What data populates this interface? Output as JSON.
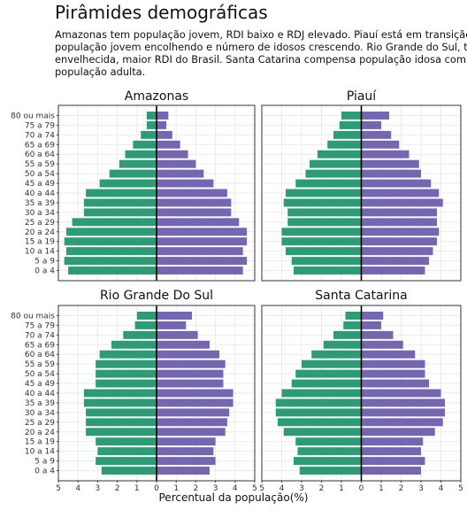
{
  "title": "Pirâmides demográficas",
  "subtitle_lines": [
    "Amazonas tem população jovem, RDI baixo e RDJ elevado. Piauí está em transição,",
    "população jovem encolhendo e número de idosos crescendo. Rio Grande do Sul, t",
    "envelhecida, maior RDI do Brasil. Santa Catarina compensa população idosa com",
    "população adulta."
  ],
  "chart_data": {
    "type": "bar",
    "xlabel": "Percentual da população(%)",
    "xlim": [
      -5,
      5
    ],
    "x_ticks": [
      -5,
      -4,
      -3,
      -2,
      -1,
      0,
      1,
      2,
      3,
      4,
      5
    ],
    "x_tick_labels": [
      "5",
      "4",
      "3",
      "2",
      "1",
      "0",
      "1",
      "2",
      "3",
      "4",
      "5"
    ],
    "grid": true,
    "colors": {
      "left": "#2e9b77",
      "right": "#7466b0"
    },
    "categories": [
      "0 a 4",
      "5 a 9",
      "10 a 14",
      "15 a 19",
      "20 a 24",
      "25 a 29",
      "30 a 34",
      "35 a 39",
      "40 a 44",
      "45 a 49",
      "50 a 54",
      "55 a 59",
      "60 a 64",
      "65 a 69",
      "70 a 74",
      "75 a 79",
      "80 ou mais"
    ],
    "panels": [
      {
        "title": "Amazonas",
        "left": [
          4.5,
          4.7,
          4.6,
          4.7,
          4.6,
          4.3,
          3.7,
          3.7,
          3.6,
          2.9,
          2.4,
          1.9,
          1.6,
          1.2,
          0.8,
          0.5,
          0.5
        ],
        "right": [
          4.4,
          4.6,
          4.4,
          4.6,
          4.6,
          4.2,
          3.8,
          3.8,
          3.6,
          2.9,
          2.4,
          2.0,
          1.6,
          1.2,
          0.8,
          0.5,
          0.6
        ]
      },
      {
        "title": "Piauí",
        "left": [
          3.4,
          3.5,
          3.8,
          4.0,
          4.0,
          3.7,
          3.7,
          3.9,
          3.8,
          3.3,
          2.8,
          2.6,
          2.2,
          1.7,
          1.4,
          1.1,
          1.0
        ],
        "right": [
          3.2,
          3.4,
          3.6,
          3.8,
          3.9,
          3.8,
          3.8,
          4.1,
          3.9,
          3.5,
          3.0,
          2.9,
          2.4,
          1.9,
          1.5,
          1.0,
          1.4
        ]
      },
      {
        "title": "Rio Grande Do Sul",
        "left": [
          2.8,
          3.1,
          3.0,
          3.1,
          3.6,
          3.6,
          3.6,
          3.7,
          3.7,
          3.1,
          3.1,
          3.1,
          2.9,
          2.3,
          1.7,
          1.1,
          1.0
        ],
        "right": [
          2.7,
          3.0,
          2.9,
          3.0,
          3.5,
          3.6,
          3.7,
          3.9,
          3.9,
          3.4,
          3.4,
          3.5,
          3.2,
          2.7,
          2.1,
          1.5,
          1.8
        ]
      },
      {
        "title": "Santa Catarina",
        "left": [
          3.1,
          3.4,
          3.2,
          3.3,
          3.9,
          4.2,
          4.3,
          4.3,
          4.0,
          3.5,
          3.3,
          3.0,
          2.5,
          1.9,
          1.4,
          0.9,
          0.8
        ],
        "right": [
          3.0,
          3.2,
          3.0,
          3.1,
          3.7,
          4.1,
          4.2,
          4.2,
          4.0,
          3.4,
          3.2,
          3.2,
          2.7,
          2.1,
          1.6,
          1.0,
          1.1
        ]
      }
    ]
  }
}
